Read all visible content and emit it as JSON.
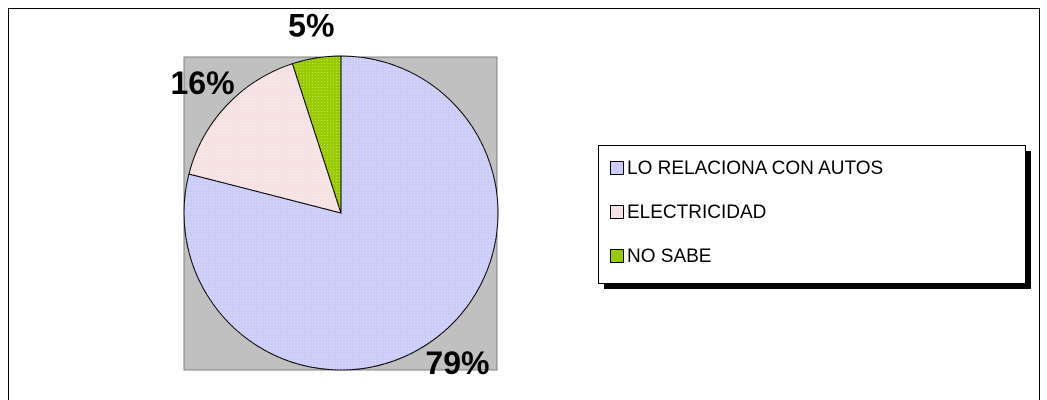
{
  "chart_data": {
    "type": "pie",
    "categories": [
      "LO RELACIONA CON AUTOS",
      "ELECTRICIDAD",
      "NO SABE"
    ],
    "values": [
      79,
      16,
      5
    ],
    "value_labels": [
      "79%",
      "16%",
      "5%"
    ],
    "colors": [
      "#ccccf8",
      "#f6e2e2",
      "#99cc00"
    ],
    "legend": "right"
  }
}
